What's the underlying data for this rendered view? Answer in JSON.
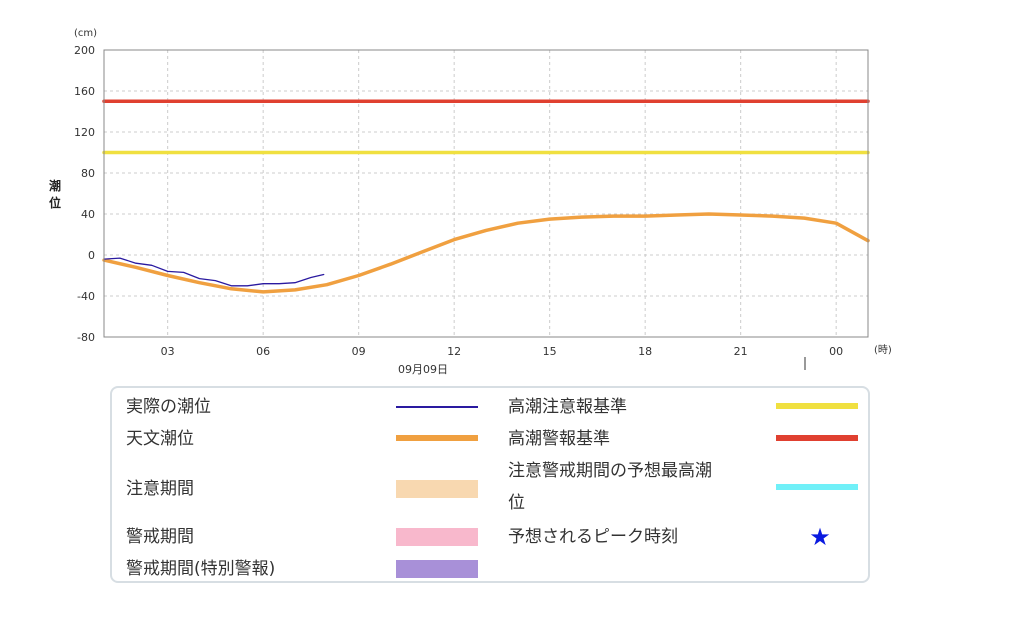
{
  "chart_data": {
    "type": "line",
    "title": "",
    "y_unit": "(cm)",
    "ylabel": "潮位",
    "ylim": [
      -80,
      200
    ],
    "yticks": [
      -80,
      -40,
      0,
      40,
      80,
      120,
      160,
      200
    ],
    "x_unit": "(時)",
    "xlim_hours": [
      1,
      25
    ],
    "xticks": [
      {
        "h": 3,
        "label": "03"
      },
      {
        "h": 6,
        "label": "06"
      },
      {
        "h": 9,
        "label": "09"
      },
      {
        "h": 12,
        "label": "12"
      },
      {
        "h": 15,
        "label": "15"
      },
      {
        "h": 18,
        "label": "18"
      },
      {
        "h": 21,
        "label": "21"
      },
      {
        "h": 24,
        "label": "00"
      }
    ],
    "date_label": "09月09日",
    "grid": true,
    "series": [
      {
        "name": "実際の潮位",
        "color": "#2a1aa0",
        "x": [
          1,
          1.5,
          2,
          2.5,
          3,
          3.5,
          4,
          4.5,
          5,
          5.5,
          6,
          6.5,
          7,
          7.5,
          7.9
        ],
        "y": [
          -4,
          -3,
          -8,
          -10,
          -16,
          -17,
          -23,
          -25,
          -30,
          -30,
          -28,
          -28,
          -27,
          -22,
          -19
        ]
      },
      {
        "name": "天文潮位",
        "color": "#f0a040",
        "x": [
          1,
          2,
          3,
          4,
          5,
          6,
          7,
          8,
          9,
          10,
          11,
          12,
          13,
          14,
          15,
          16,
          17,
          18,
          19,
          20,
          21,
          22,
          23,
          24,
          25
        ],
        "y": [
          -5,
          -12,
          -20,
          -27,
          -33,
          -36,
          -34,
          -29,
          -20,
          -9,
          3,
          15,
          24,
          31,
          35,
          37,
          38,
          38,
          39,
          40,
          39,
          38,
          36,
          31,
          14
        ]
      },
      {
        "name": "高潮注意報基準",
        "color": "#f0e040",
        "x": [
          1,
          25
        ],
        "y": [
          100,
          100
        ]
      },
      {
        "name": "高潮警報基準",
        "color": "#e04030",
        "x": [
          1,
          25
        ],
        "y": [
          150,
          150
        ]
      }
    ]
  },
  "legend": {
    "items": [
      {
        "label": "実際の潮位",
        "color": "#2a1aa0",
        "kind": "thin-line"
      },
      {
        "label": "天文潮位",
        "color": "#f0a040",
        "kind": "thick-line"
      },
      {
        "label": "注意期間",
        "color": "#f8d8b0",
        "kind": "block"
      },
      {
        "label": "警戒期間",
        "color": "#f8b8cc",
        "kind": "block"
      },
      {
        "label": "警戒期間(特別警報)",
        "color": "#a890d8",
        "kind": "block"
      },
      {
        "label": "高潮注意報基準",
        "color": "#f0e040",
        "kind": "thick-line"
      },
      {
        "label": "高潮警報基準",
        "color": "#e04030",
        "kind": "thick-line"
      },
      {
        "label": "注意警戒期間の予想最高潮位",
        "label_line1": "注意警戒期間の予想最高潮",
        "label_line2": "位",
        "color": "#70f0f8",
        "kind": "thick-line"
      },
      {
        "label": "予想されるピーク時刻",
        "color": "#0a1ae0",
        "kind": "star",
        "symbol": "★"
      }
    ]
  }
}
